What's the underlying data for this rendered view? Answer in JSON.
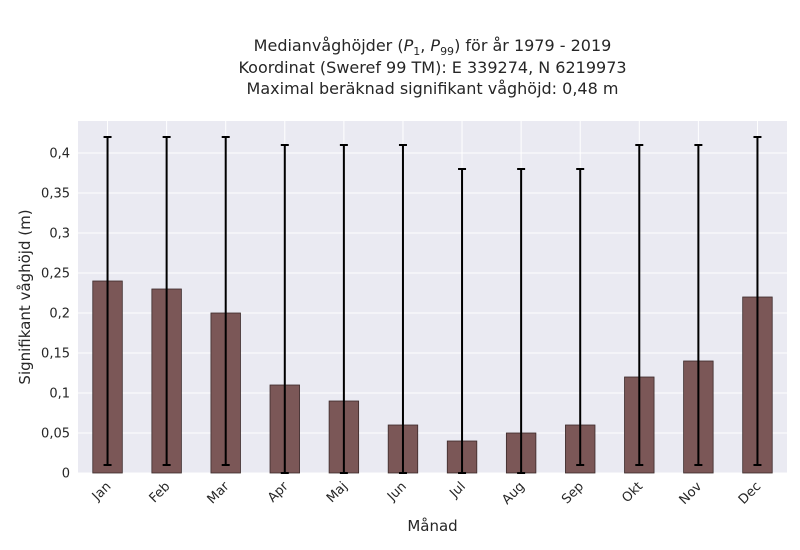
{
  "chart_data": {
    "type": "bar",
    "title_line1_prefix": "Medianvåghöjder (",
    "title_p": "P",
    "title_sub1": "1",
    "title_sep": ", ",
    "title_sub2": "99",
    "title_line1_suffix": ") för år 1979 - 2019",
    "title_line2": "Koordinat (Sweref 99 TM): E 339274, N 6219973",
    "title_line3": "Maximal beräknad signifikant våghöjd: 0,48 m",
    "xlabel": "Månad",
    "ylabel": "Signifikant våghöjd (m)",
    "ylim": [
      0,
      0.44
    ],
    "yticks": [
      0,
      0.05,
      0.1,
      0.15,
      0.2,
      0.25,
      0.3,
      0.35,
      0.4
    ],
    "ytick_labels": [
      "0",
      "0,05",
      "0,1",
      "0,15",
      "0,2",
      "0,25",
      "0,3",
      "0,35",
      "0,4"
    ],
    "grid": true,
    "categories": [
      "Jan",
      "Feb",
      "Mar",
      "Apr",
      "Maj",
      "Jun",
      "Jul",
      "Aug",
      "Sep",
      "Okt",
      "Nov",
      "Dec"
    ],
    "values": [
      0.24,
      0.23,
      0.2,
      0.11,
      0.09,
      0.06,
      0.04,
      0.05,
      0.06,
      0.12,
      0.14,
      0.22
    ],
    "p1": [
      0.01,
      0.01,
      0.01,
      0.0,
      0.0,
      0.0,
      0.0,
      0.0,
      0.01,
      0.01,
      0.01,
      0.01
    ],
    "p99": [
      0.42,
      0.42,
      0.42,
      0.41,
      0.41,
      0.41,
      0.38,
      0.38,
      0.38,
      0.41,
      0.41,
      0.42
    ],
    "bar_color": "#7b5757",
    "bg_color": "#eaeaf2",
    "errorbar_color": "#000000"
  }
}
